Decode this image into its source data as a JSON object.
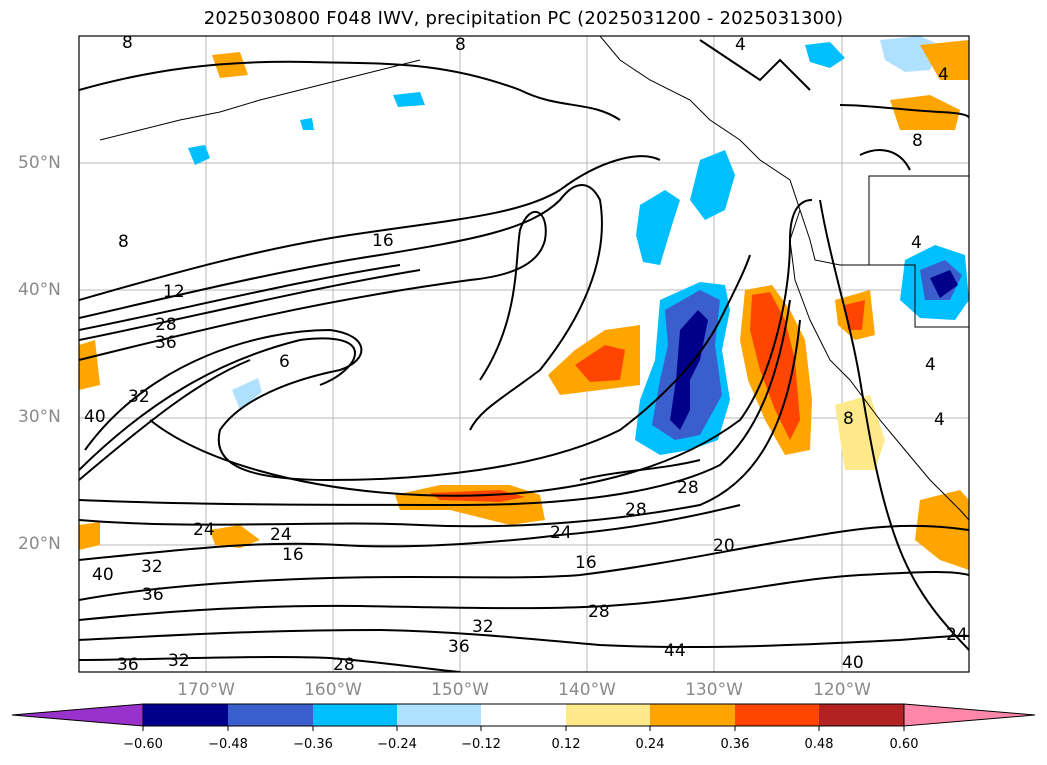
{
  "title": "2025030800 F048 IWV, precipitation PC (2025031200 - 2025031300)",
  "lat_labels": [
    "50°N",
    "40°N",
    "30°N",
    "20°N"
  ],
  "lon_labels": [
    "170°W",
    "160°W",
    "150°W",
    "140°W",
    "130°W",
    "120°W"
  ],
  "colorbar": {
    "ticks": [
      "−0.60",
      "−0.48",
      "−0.36",
      "−0.24",
      "−0.12",
      "0.12",
      "0.24",
      "0.36",
      "0.48",
      "0.60"
    ],
    "colors": [
      "#9932cc",
      "#00008b",
      "#3a5fcd",
      "#00bfff",
      "#b0e0ff",
      "#ffffff",
      "#ffe98a",
      "#ffa500",
      "#ff4500",
      "#b22222",
      "#ff88aa"
    ]
  },
  "contour_labels": [
    "8",
    "8",
    "4",
    "4",
    "8",
    "16",
    "8",
    "12",
    "28",
    "36",
    "32",
    "40",
    "6",
    "16",
    "24",
    "24",
    "32",
    "36",
    "40",
    "32",
    "36",
    "32",
    "36",
    "28",
    "28",
    "24",
    "28",
    "16",
    "20",
    "28",
    "44",
    "40",
    "24",
    "4",
    "4",
    "4",
    "8"
  ],
  "colors": {
    "blue_dark": "#00008b",
    "blue_mid": "#3a5fcd",
    "blue_light": "#00bfff",
    "blue_pale": "#b0e0ff",
    "yellow": "#ffe98a",
    "orange": "#ffa500",
    "red": "#ff4500"
  }
}
